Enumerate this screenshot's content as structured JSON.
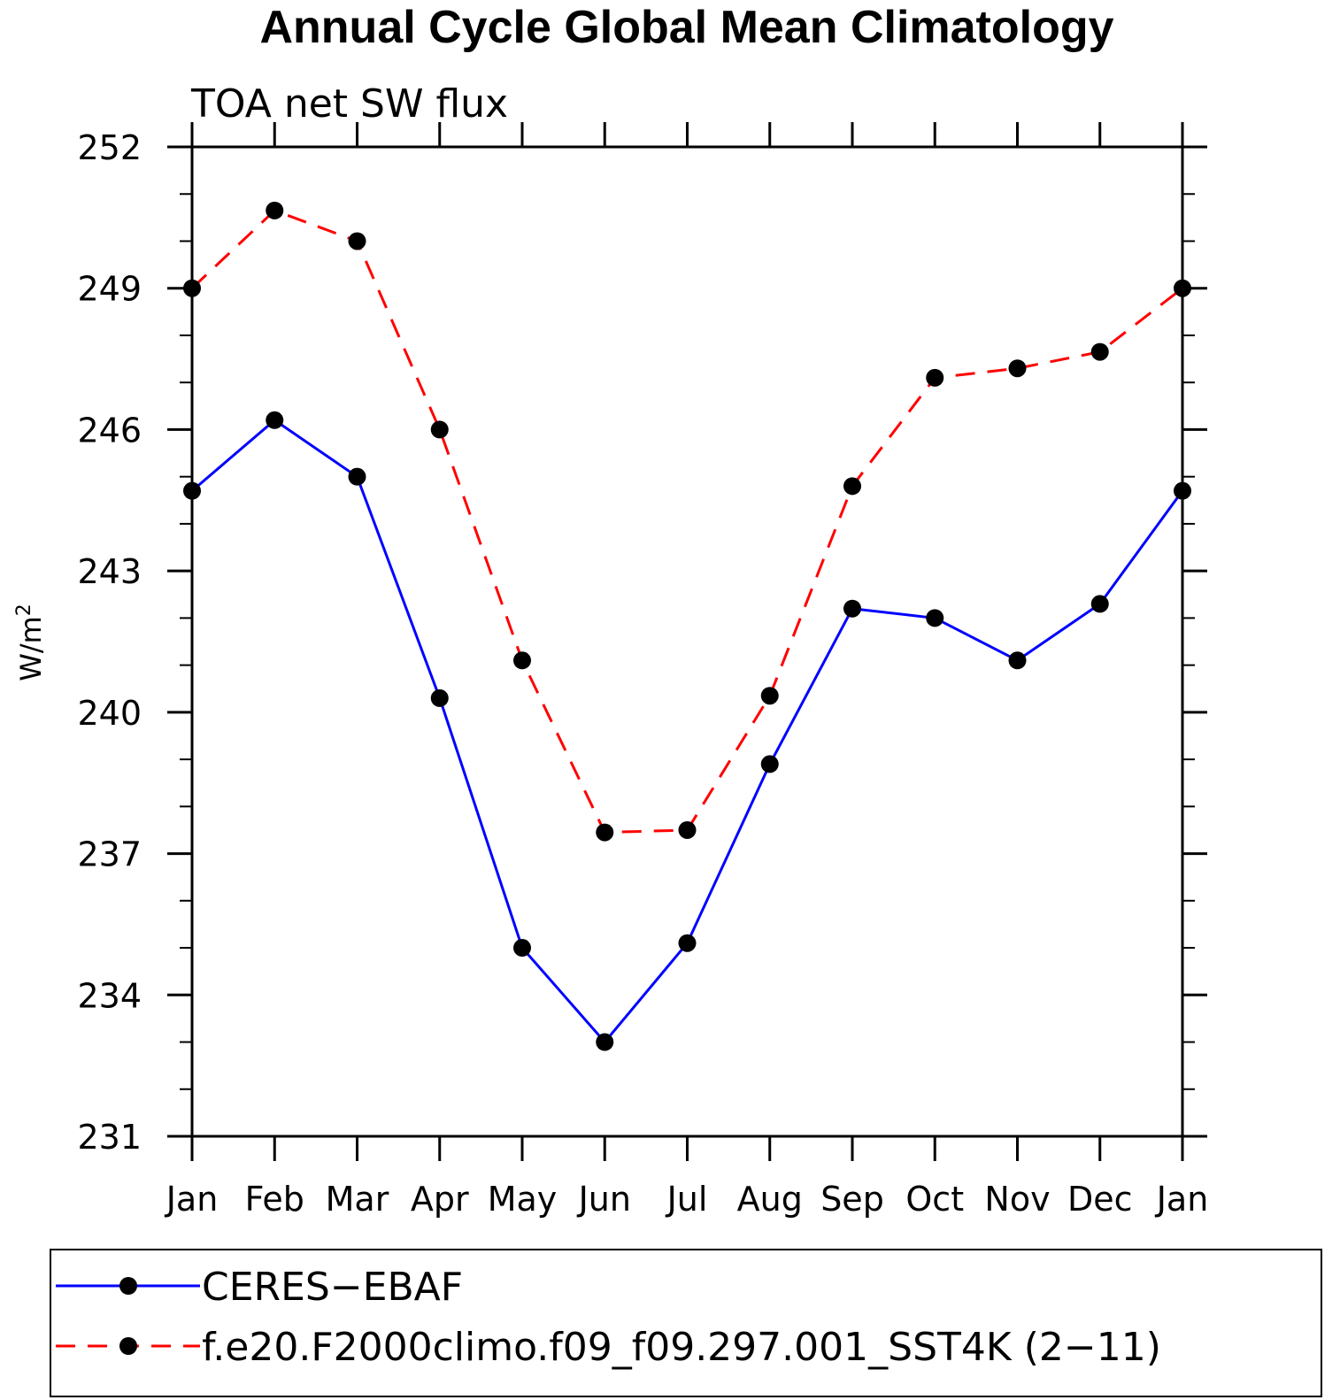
{
  "chart_data": {
    "type": "line",
    "title": "Annual Cycle Global Mean Climatology",
    "subtitle": "TOA net SW flux",
    "ylabel_main": "W/m",
    "ylabel_sup": "2",
    "categories": [
      "Jan",
      "Feb",
      "Mar",
      "Apr",
      "May",
      "Jun",
      "Jul",
      "Aug",
      "Sep",
      "Oct",
      "Nov",
      "Dec",
      "Jan"
    ],
    "ylim": [
      231,
      252
    ],
    "yticks": [
      "231",
      "234",
      "237",
      "240",
      "243",
      "246",
      "249",
      "252"
    ],
    "series": [
      {
        "name": "CERES−EBAF",
        "color": "#0000ff",
        "style": "solid",
        "values": [
          244.7,
          246.2,
          245.0,
          240.3,
          235.0,
          233.0,
          235.1,
          238.9,
          242.2,
          242.0,
          241.1,
          242.3,
          244.7
        ]
      },
      {
        "name": "f.e20.F2000climo.f09_f09.297.001_SST4K (2−11)",
        "color": "#ff0000",
        "style": "dashed",
        "values": [
          249.0,
          250.65,
          250.0,
          246.0,
          241.1,
          237.45,
          237.5,
          240.35,
          244.8,
          247.1,
          247.3,
          247.65,
          249.0
        ]
      }
    ],
    "grid": false,
    "legend_position": "bottom"
  }
}
